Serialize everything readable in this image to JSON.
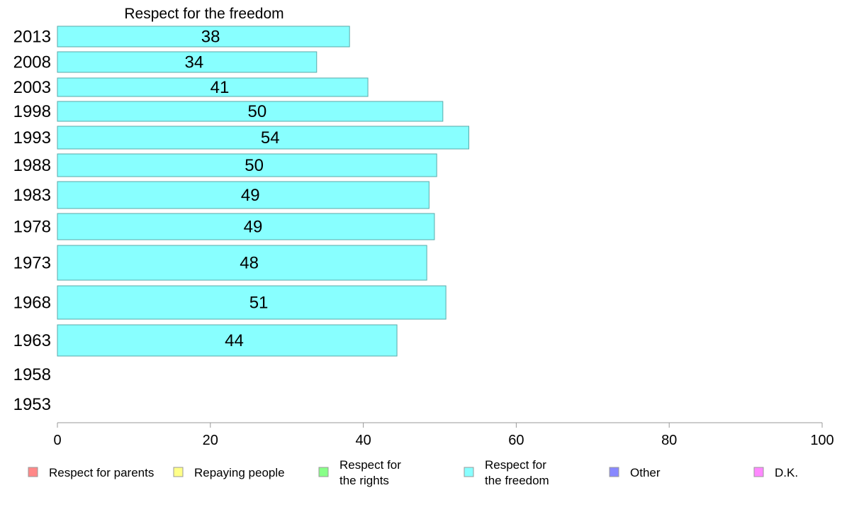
{
  "chart_data": {
    "type": "bar",
    "orientation": "horizontal",
    "title": "Respect for the freedom",
    "categories": [
      "2013",
      "2008",
      "2003",
      "1998",
      "1993",
      "1988",
      "1983",
      "1978",
      "1973",
      "1968",
      "1963",
      "1958",
      "1953"
    ],
    "series": [
      {
        "name": "Respect for the freedom",
        "values": [
          38,
          34,
          41,
          50,
          54,
          50,
          49,
          49,
          48,
          51,
          44,
          null,
          null
        ],
        "bar_values": [
          38.2,
          33.9,
          40.6,
          50.4,
          53.8,
          49.6,
          48.6,
          49.3,
          48.3,
          50.8,
          44.4,
          null,
          null
        ]
      }
    ],
    "xlim": [
      0,
      100
    ],
    "xticks": [
      "0",
      "20",
      "40",
      "60",
      "80",
      "100"
    ],
    "xlabel": "",
    "ylabel": "",
    "grid": false,
    "legend_placement": "bottom",
    "legend": [
      {
        "label": "Respect for parents",
        "color": "#ff8888"
      },
      {
        "label": "Repaying people",
        "color": "#ffff88"
      },
      {
        "label": "Respect for\nthe rights",
        "color": "#88ff88"
      },
      {
        "label": "Respect for\nthe freedom",
        "color": "#88ffff"
      },
      {
        "label": "Other",
        "color": "#8888ff"
      },
      {
        "label": "D.K.",
        "color": "#ff88ff"
      }
    ],
    "bar_color": "#88ffff",
    "bar_stroke": "#5aaaaa"
  }
}
